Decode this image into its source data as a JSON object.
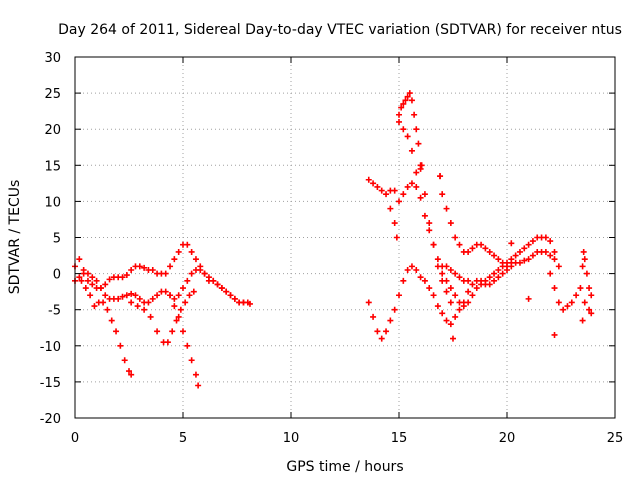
{
  "chart_data": {
    "type": "scatter",
    "title": "Day 264 of 2011, Sidereal Day-to-day VTEC variation (SDTVAR) for receiver ntus",
    "xlabel": "GPS time / hours",
    "ylabel": "SDTVAR / TECUs",
    "xlim": [
      0,
      25
    ],
    "ylim": [
      -20,
      30
    ],
    "xticks": [
      0,
      5,
      10,
      15,
      20,
      25
    ],
    "yticks": [
      -20,
      -15,
      -10,
      -5,
      0,
      5,
      10,
      15,
      20,
      25,
      30
    ],
    "grid": true,
    "marker": "+",
    "marker_color": "#ff0000",
    "series": [
      {
        "points": [
          [
            0.0,
            1
          ],
          [
            0.2,
            2
          ],
          [
            0.4,
            0.5
          ],
          [
            0.6,
            -1
          ],
          [
            0.8,
            -1.5
          ],
          [
            1.0,
            -2
          ],
          [
            1.2,
            -2
          ],
          [
            1.4,
            -1.5
          ],
          [
            1.6,
            -0.8
          ],
          [
            1.8,
            -0.5
          ],
          [
            2.0,
            -0.5
          ],
          [
            2.2,
            -0.5
          ],
          [
            2.4,
            -0.2
          ],
          [
            2.6,
            0.5
          ],
          [
            2.8,
            1
          ],
          [
            3.0,
            1
          ],
          [
            3.2,
            0.8
          ],
          [
            3.4,
            0.5
          ],
          [
            3.6,
            0.5
          ],
          [
            3.8,
            0
          ],
          [
            4.0,
            0
          ],
          [
            4.2,
            0
          ],
          [
            4.4,
            1
          ],
          [
            4.6,
            2
          ],
          [
            4.8,
            3
          ],
          [
            5.0,
            4
          ],
          [
            5.2,
            4
          ],
          [
            5.4,
            3
          ],
          [
            5.6,
            2
          ],
          [
            5.8,
            1
          ],
          [
            6.0,
            0
          ],
          [
            6.2,
            -1
          ],
          [
            6.4,
            -1
          ],
          [
            6.6,
            -1.5
          ],
          [
            6.8,
            -2
          ],
          [
            7.0,
            -2.5
          ],
          [
            7.2,
            -3
          ],
          [
            7.4,
            -3.5
          ],
          [
            7.6,
            -4
          ],
          [
            7.8,
            -4
          ],
          [
            8.1,
            -4.2
          ]
        ]
      },
      {
        "points": [
          [
            0.0,
            -1
          ],
          [
            0.2,
            -0.5
          ],
          [
            0.4,
            0
          ],
          [
            0.6,
            0
          ],
          [
            0.8,
            -0.5
          ],
          [
            1.0,
            -1
          ],
          [
            1.2,
            -2
          ],
          [
            1.4,
            -3
          ],
          [
            1.6,
            -3.5
          ],
          [
            1.8,
            -3.5
          ],
          [
            2.0,
            -3.5
          ],
          [
            2.2,
            -3.2
          ],
          [
            2.4,
            -3
          ],
          [
            2.6,
            -2.8
          ],
          [
            2.8,
            -3
          ],
          [
            3.0,
            -3.5
          ],
          [
            3.2,
            -4
          ],
          [
            3.4,
            -4
          ],
          [
            3.6,
            -3.5
          ],
          [
            3.8,
            -3
          ],
          [
            4.0,
            -2.5
          ],
          [
            4.2,
            -2.5
          ],
          [
            4.4,
            -3
          ],
          [
            4.6,
            -3.5
          ],
          [
            4.8,
            -3
          ],
          [
            5.0,
            -2
          ],
          [
            5.2,
            -1
          ],
          [
            5.4,
            0
          ],
          [
            5.6,
            0.5
          ],
          [
            5.8,
            0.5
          ],
          [
            6.0,
            0
          ],
          [
            6.2,
            -0.5
          ],
          [
            6.4,
            -1
          ],
          [
            6.6,
            -1.5
          ],
          [
            6.8,
            -2
          ],
          [
            7.0,
            -2.5
          ],
          [
            7.2,
            -3
          ],
          [
            7.4,
            -3.5
          ],
          [
            7.6,
            -4
          ],
          [
            7.8,
            -4
          ],
          [
            8.0,
            -4
          ]
        ]
      },
      {
        "points": [
          [
            0.3,
            -1
          ],
          [
            0.5,
            -2
          ],
          [
            0.7,
            -3
          ],
          [
            0.9,
            -4.5
          ],
          [
            1.1,
            -4
          ],
          [
            1.3,
            -4
          ],
          [
            1.5,
            -5
          ],
          [
            1.7,
            -6.5
          ],
          [
            1.9,
            -8
          ],
          [
            2.1,
            -10
          ],
          [
            2.3,
            -12
          ],
          [
            2.5,
            -13.5
          ],
          [
            2.6,
            -14
          ]
        ]
      },
      {
        "points": [
          [
            2.6,
            -4
          ],
          [
            2.9,
            -4.5
          ],
          [
            3.2,
            -5
          ],
          [
            3.5,
            -6
          ],
          [
            3.8,
            -8
          ],
          [
            4.1,
            -9.5
          ],
          [
            4.3,
            -9.5
          ],
          [
            4.5,
            -8
          ],
          [
            4.7,
            -6.5
          ],
          [
            4.9,
            -5
          ],
          [
            5.1,
            -4
          ],
          [
            5.3,
            -3
          ],
          [
            5.5,
            -2.5
          ]
        ]
      },
      {
        "points": [
          [
            4.4,
            -3
          ],
          [
            4.6,
            -4.5
          ],
          [
            4.8,
            -6
          ],
          [
            5.0,
            -8
          ],
          [
            5.2,
            -10
          ],
          [
            5.4,
            -12
          ],
          [
            5.6,
            -14
          ],
          [
            5.7,
            -15.5
          ]
        ]
      },
      {
        "points": [
          [
            13.6,
            -4
          ],
          [
            13.8,
            -6
          ],
          [
            14.0,
            -8
          ],
          [
            14.2,
            -9
          ],
          [
            14.4,
            -8
          ],
          [
            14.6,
            -6.5
          ],
          [
            14.8,
            -5
          ],
          [
            15.0,
            -3
          ],
          [
            15.2,
            -1
          ],
          [
            15.4,
            0.5
          ],
          [
            15.6,
            1
          ],
          [
            15.8,
            0.5
          ],
          [
            16.0,
            -0.5
          ],
          [
            16.2,
            -1
          ],
          [
            16.4,
            -2
          ],
          [
            16.6,
            -3
          ],
          [
            16.8,
            -4.5
          ],
          [
            17.0,
            -5.5
          ],
          [
            17.2,
            -6.5
          ],
          [
            17.4,
            -7
          ],
          [
            17.6,
            -6
          ],
          [
            17.8,
            -5
          ],
          [
            18.0,
            -4
          ],
          [
            18.2,
            -2.5
          ],
          [
            18.4,
            -1.5
          ],
          [
            18.6,
            -1
          ],
          [
            18.8,
            -1
          ],
          [
            19.0,
            -1.5
          ],
          [
            19.2,
            -1.5
          ],
          [
            19.4,
            -1
          ],
          [
            19.6,
            -0.5
          ],
          [
            19.8,
            0
          ],
          [
            20.0,
            0.5
          ],
          [
            20.2,
            1
          ],
          [
            20.4,
            1.5
          ],
          [
            20.6,
            1.5
          ],
          [
            20.8,
            1.8
          ],
          [
            21.0,
            2
          ],
          [
            21.2,
            2.5
          ],
          [
            21.4,
            3
          ],
          [
            21.6,
            3
          ],
          [
            21.8,
            3
          ],
          [
            22.0,
            2.5
          ],
          [
            22.2,
            2
          ]
        ]
      },
      {
        "points": [
          [
            13.6,
            13
          ],
          [
            13.8,
            12.5
          ],
          [
            14.0,
            12
          ],
          [
            14.2,
            11.5
          ],
          [
            14.4,
            11
          ],
          [
            14.6,
            11.5
          ],
          [
            14.8,
            11.5
          ],
          [
            15.0,
            10
          ],
          [
            15.2,
            11
          ],
          [
            15.4,
            12
          ],
          [
            15.6,
            12.5
          ],
          [
            15.8,
            12
          ],
          [
            16.0,
            10.5
          ],
          [
            16.2,
            8
          ],
          [
            16.4,
            6
          ],
          [
            16.6,
            4
          ],
          [
            16.8,
            2
          ],
          [
            17.0,
            1
          ],
          [
            17.2,
            1
          ],
          [
            17.4,
            0.5
          ],
          [
            17.6,
            0
          ],
          [
            17.8,
            -0.5
          ],
          [
            18.0,
            -1
          ],
          [
            18.2,
            -1
          ]
        ]
      },
      {
        "points": [
          [
            14.6,
            9
          ],
          [
            14.8,
            7
          ],
          [
            14.9,
            5
          ]
        ]
      },
      {
        "points": [
          [
            15.0,
            22
          ],
          [
            15.1,
            23
          ],
          [
            15.2,
            23.5
          ],
          [
            15.3,
            24
          ],
          [
            15.4,
            24.5
          ],
          [
            15.5,
            25
          ],
          [
            15.6,
            24
          ],
          [
            15.7,
            22
          ],
          [
            15.8,
            20
          ],
          [
            15.9,
            18
          ],
          [
            16.0,
            15
          ],
          [
            16.2,
            11
          ],
          [
            16.4,
            7
          ],
          [
            16.6,
            4
          ],
          [
            16.8,
            1
          ],
          [
            17.0,
            -1
          ],
          [
            17.2,
            -2.5
          ],
          [
            17.4,
            -4
          ]
        ]
      },
      {
        "points": [
          [
            15.0,
            21
          ],
          [
            15.2,
            20
          ],
          [
            15.4,
            19
          ],
          [
            15.6,
            17
          ],
          [
            15.8,
            14
          ]
        ]
      },
      {
        "points": [
          [
            16.9,
            13.5
          ],
          [
            17.0,
            11
          ],
          [
            17.2,
            9
          ],
          [
            17.4,
            7
          ],
          [
            17.6,
            5
          ],
          [
            17.8,
            4
          ],
          [
            18.0,
            3
          ],
          [
            18.2,
            3
          ],
          [
            18.4,
            3.5
          ],
          [
            18.6,
            4
          ],
          [
            18.8,
            4
          ],
          [
            19.0,
            3.5
          ],
          [
            19.2,
            3
          ],
          [
            19.4,
            2.5
          ],
          [
            19.6,
            2
          ],
          [
            19.8,
            1.5
          ],
          [
            20.0,
            1.5
          ],
          [
            20.2,
            2
          ],
          [
            20.4,
            2.5
          ],
          [
            20.6,
            3
          ],
          [
            20.8,
            3.5
          ],
          [
            21.0,
            4
          ],
          [
            21.2,
            4.5
          ],
          [
            21.4,
            5
          ],
          [
            21.6,
            5
          ],
          [
            21.8,
            5
          ],
          [
            22.0,
            4.5
          ],
          [
            22.2,
            3
          ],
          [
            22.4,
            1
          ]
        ]
      },
      {
        "points": [
          [
            17.0,
            0
          ],
          [
            17.2,
            -1
          ],
          [
            17.4,
            -2
          ],
          [
            17.6,
            -3
          ],
          [
            17.8,
            -4
          ],
          [
            18.0,
            -4.5
          ],
          [
            18.2,
            -4
          ],
          [
            18.4,
            -3
          ],
          [
            18.6,
            -2
          ],
          [
            18.8,
            -1.5
          ],
          [
            19.0,
            -1
          ],
          [
            19.2,
            -0.5
          ],
          [
            19.4,
            0
          ],
          [
            19.6,
            0.5
          ],
          [
            19.8,
            1
          ],
          [
            20.0,
            1
          ],
          [
            20.2,
            1.5
          ]
        ]
      },
      {
        "points": [
          [
            22.0,
            0
          ],
          [
            22.2,
            -2
          ],
          [
            22.4,
            -4
          ],
          [
            22.6,
            -5
          ],
          [
            22.8,
            -4.5
          ],
          [
            23.0,
            -4
          ],
          [
            23.2,
            -3
          ],
          [
            23.4,
            -2
          ],
          [
            23.6,
            -4
          ],
          [
            23.8,
            -5
          ],
          [
            23.9,
            -5.5
          ],
          [
            23.5,
            1
          ],
          [
            23.55,
            3
          ],
          [
            23.6,
            2
          ],
          [
            23.7,
            0
          ],
          [
            23.8,
            -2
          ],
          [
            23.9,
            -3
          ]
        ]
      },
      {
        "points": [
          [
            16.0,
            14.5
          ],
          [
            16.05,
            15
          ],
          [
            16.9,
            13.5
          ],
          [
            17.5,
            -9
          ],
          [
            20.2,
            4.2
          ],
          [
            21.0,
            -3.5
          ],
          [
            22.2,
            -8.5
          ],
          [
            23.5,
            -6.5
          ]
        ]
      }
    ]
  }
}
